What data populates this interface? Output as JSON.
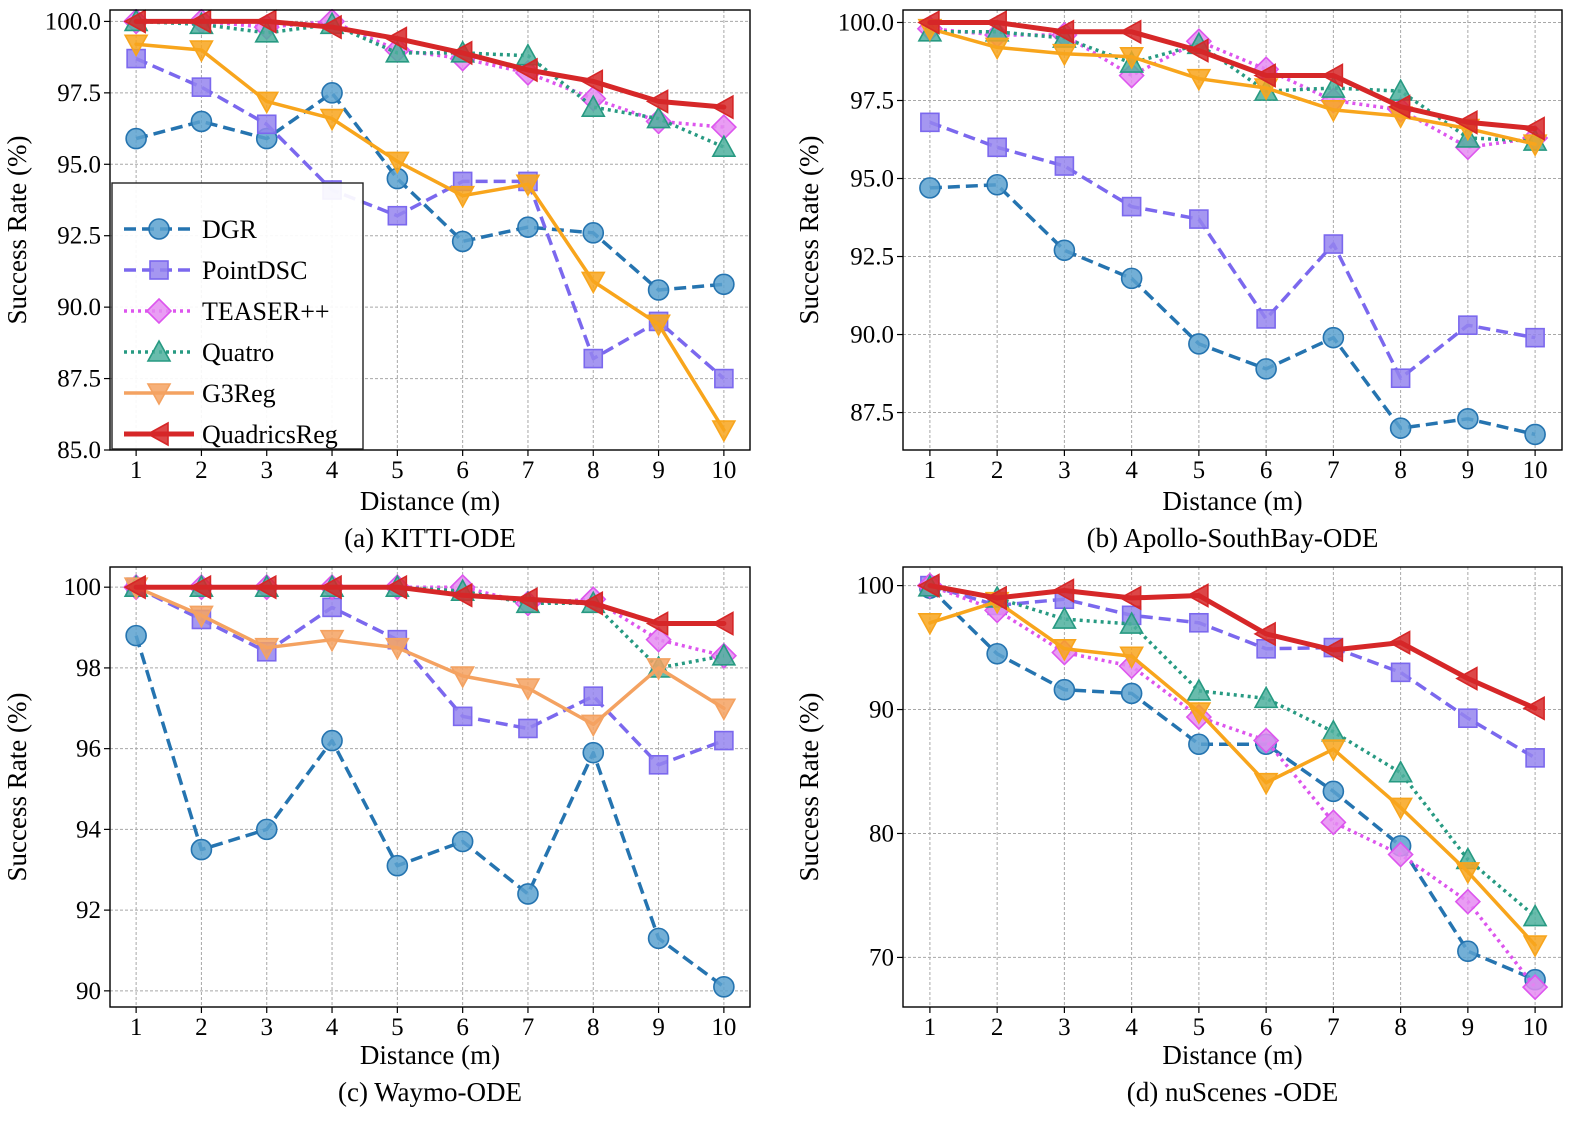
{
  "colors": {
    "DGR": "#2574b0",
    "DGR_fill": "#5ba1cf",
    "PointDSC": "#7b68ee",
    "PointDSC_fill": "#9585ee",
    "TEASER++": "#dd55ee",
    "TEASER++_fill": "#e58cf2",
    "Quatro": "#279a82",
    "Quatro_fill": "#4db09e",
    "G3Reg": "#f8a51c",
    "G3Reg_alt": "#f4a261",
    "QuadricsReg": "#d62728",
    "grid": "#a8a8a8",
    "axis": "#000000"
  },
  "chart_data": [
    {
      "type": "line",
      "caption": "(a) KITTI-ODE",
      "xlabel": "Distance (m)",
      "ylabel": "Success Rate (%)",
      "x": [
        1,
        2,
        3,
        4,
        5,
        6,
        7,
        8,
        9,
        10
      ],
      "xticks": [
        "1",
        "2",
        "3",
        "4",
        "5",
        "6",
        "7",
        "8",
        "9",
        "10"
      ],
      "xlim": [
        0.6,
        10.4
      ],
      "ylim": [
        85.0,
        100.4
      ],
      "yticks": [
        85.0,
        87.5,
        90.0,
        92.5,
        95.0,
        97.5,
        100.0
      ],
      "ytick_labels": [
        "85.0",
        "87.5",
        "90.0",
        "92.5",
        "95.0",
        "97.5",
        "100.0"
      ],
      "grid": true,
      "legend": "bottom-left",
      "series": [
        {
          "name": "DGR",
          "values": [
            95.9,
            96.5,
            95.9,
            97.5,
            94.5,
            92.3,
            92.8,
            92.6,
            90.6,
            90.8
          ]
        },
        {
          "name": "PointDSC",
          "values": [
            98.7,
            97.7,
            96.4,
            94.1,
            93.2,
            94.4,
            94.4,
            88.2,
            89.5,
            87.5
          ]
        },
        {
          "name": "TEASER++",
          "values": [
            100.0,
            100.0,
            99.8,
            100.0,
            99.0,
            98.7,
            98.2,
            97.3,
            96.5,
            96.3
          ]
        },
        {
          "name": "Quatro",
          "values": [
            100.0,
            99.9,
            99.6,
            99.9,
            98.9,
            98.9,
            98.8,
            97.0,
            96.6,
            95.6
          ]
        },
        {
          "name": "G3Reg",
          "values": [
            99.2,
            99.0,
            97.2,
            96.6,
            95.1,
            93.9,
            94.3,
            90.9,
            89.4,
            85.7
          ]
        },
        {
          "name": "QuadricsReg",
          "values": [
            100.0,
            100.0,
            100.0,
            99.8,
            99.4,
            98.9,
            98.3,
            97.9,
            97.2,
            97.0
          ]
        }
      ]
    },
    {
      "type": "line",
      "caption": "(b) Apollo-SouthBay-ODE",
      "xlabel": "Distance (m)",
      "ylabel": "Success Rate (%)",
      "x": [
        1,
        2,
        3,
        4,
        5,
        6,
        7,
        8,
        9,
        10
      ],
      "xticks": [
        "1",
        "2",
        "3",
        "4",
        "5",
        "6",
        "7",
        "8",
        "9",
        "10"
      ],
      "xlim": [
        0.6,
        10.4
      ],
      "ylim": [
        86.3,
        100.4
      ],
      "yticks": [
        87.5,
        90.0,
        92.5,
        95.0,
        97.5,
        100.0
      ],
      "ytick_labels": [
        "87.5",
        "90.0",
        "92.5",
        "95.0",
        "97.5",
        "100.0"
      ],
      "grid": true,
      "series": [
        {
          "name": "DGR",
          "values": [
            94.7,
            94.8,
            92.7,
            91.8,
            89.7,
            88.9,
            89.9,
            87.0,
            87.3,
            86.8
          ]
        },
        {
          "name": "PointDSC",
          "values": [
            96.8,
            96.0,
            95.4,
            94.1,
            93.7,
            90.5,
            92.9,
            88.6,
            90.3,
            89.9
          ]
        },
        {
          "name": "TEASER++",
          "values": [
            99.8,
            99.6,
            99.6,
            98.3,
            99.4,
            98.5,
            97.5,
            97.2,
            96.0,
            96.3
          ]
        },
        {
          "name": "Quatro",
          "values": [
            99.7,
            99.7,
            99.5,
            98.7,
            99.3,
            97.8,
            97.9,
            97.8,
            96.3,
            96.2
          ]
        },
        {
          "name": "G3Reg",
          "values": [
            99.8,
            99.2,
            99.0,
            98.9,
            98.2,
            97.9,
            97.2,
            97.0,
            96.6,
            96.1
          ]
        },
        {
          "name": "QuadricsReg",
          "values": [
            100.0,
            100.0,
            99.7,
            99.7,
            99.1,
            98.3,
            98.3,
            97.3,
            96.8,
            96.6
          ]
        }
      ]
    },
    {
      "type": "line",
      "caption": "(c) Waymo-ODE",
      "xlabel": "Distance (m)",
      "ylabel": "Success Rate (%)",
      "x": [
        1,
        2,
        3,
        4,
        5,
        6,
        7,
        8,
        9,
        10
      ],
      "xticks": [
        "1",
        "2",
        "3",
        "4",
        "5",
        "6",
        "7",
        "8",
        "9",
        "10"
      ],
      "xlim": [
        0.6,
        10.4
      ],
      "ylim": [
        89.6,
        100.5
      ],
      "yticks": [
        90,
        92,
        94,
        96,
        98,
        100
      ],
      "ytick_labels": [
        "90",
        "92",
        "94",
        "96",
        "98",
        "100"
      ],
      "grid": true,
      "series": [
        {
          "name": "DGR",
          "values": [
            98.8,
            93.5,
            94.0,
            96.2,
            93.1,
            93.7,
            92.4,
            95.9,
            91.3,
            90.1
          ]
        },
        {
          "name": "PointDSC",
          "values": [
            100.0,
            99.2,
            98.4,
            99.5,
            98.7,
            96.8,
            96.5,
            97.3,
            95.6,
            96.2
          ]
        },
        {
          "name": "TEASER++",
          "values": [
            100.0,
            100.0,
            100.0,
            100.0,
            100.0,
            100.0,
            99.6,
            99.7,
            98.7,
            98.3
          ]
        },
        {
          "name": "Quatro",
          "values": [
            100.0,
            100.0,
            100.0,
            100.0,
            100.0,
            99.9,
            99.6,
            99.6,
            98.0,
            98.3
          ]
        },
        {
          "name": "G3Reg",
          "values": [
            100.0,
            99.3,
            98.5,
            98.7,
            98.5,
            97.8,
            97.5,
            96.6,
            98.0,
            97.0
          ]
        },
        {
          "name": "QuadricsReg",
          "values": [
            100.0,
            100.0,
            100.0,
            100.0,
            100.0,
            99.8,
            99.7,
            99.6,
            99.1,
            99.1
          ]
        }
      ]
    },
    {
      "type": "line",
      "caption": "(d) nuScenes -ODE",
      "xlabel": "Distance (m)",
      "ylabel": "Success Rate (%)",
      "x": [
        1,
        2,
        3,
        4,
        5,
        6,
        7,
        8,
        9,
        10
      ],
      "xticks": [
        "1",
        "2",
        "3",
        "4",
        "5",
        "6",
        "7",
        "8",
        "9",
        "10"
      ],
      "xlim": [
        0.6,
        10.4
      ],
      "ylim": [
        66.0,
        101.5
      ],
      "yticks": [
        70,
        80,
        90,
        100
      ],
      "ytick_labels": [
        "70",
        "80",
        "90",
        "100"
      ],
      "grid": true,
      "series": [
        {
          "name": "DGR",
          "values": [
            99.8,
            94.5,
            91.6,
            91.3,
            87.2,
            87.2,
            83.4,
            79.0,
            70.5,
            68.2
          ]
        },
        {
          "name": "PointDSC",
          "values": [
            100.0,
            98.4,
            98.9,
            97.6,
            97.0,
            94.9,
            95.0,
            93.0,
            89.3,
            86.1
          ]
        },
        {
          "name": "TEASER++",
          "values": [
            100.0,
            98.0,
            94.6,
            93.5,
            89.4,
            87.5,
            80.9,
            78.3,
            74.5,
            67.6
          ]
        },
        {
          "name": "Quatro",
          "values": [
            99.9,
            99.0,
            97.3,
            96.9,
            91.5,
            90.9,
            88.2,
            84.9,
            77.9,
            73.3
          ]
        },
        {
          "name": "G3Reg",
          "values": [
            97.0,
            98.7,
            94.9,
            94.3,
            89.8,
            84.1,
            86.8,
            82.1,
            76.9,
            71.0
          ]
        },
        {
          "name": "QuadricsReg",
          "values": [
            100.0,
            99.0,
            99.6,
            99.0,
            99.2,
            96.1,
            94.8,
            95.4,
            92.5,
            90.1
          ]
        }
      ]
    }
  ]
}
